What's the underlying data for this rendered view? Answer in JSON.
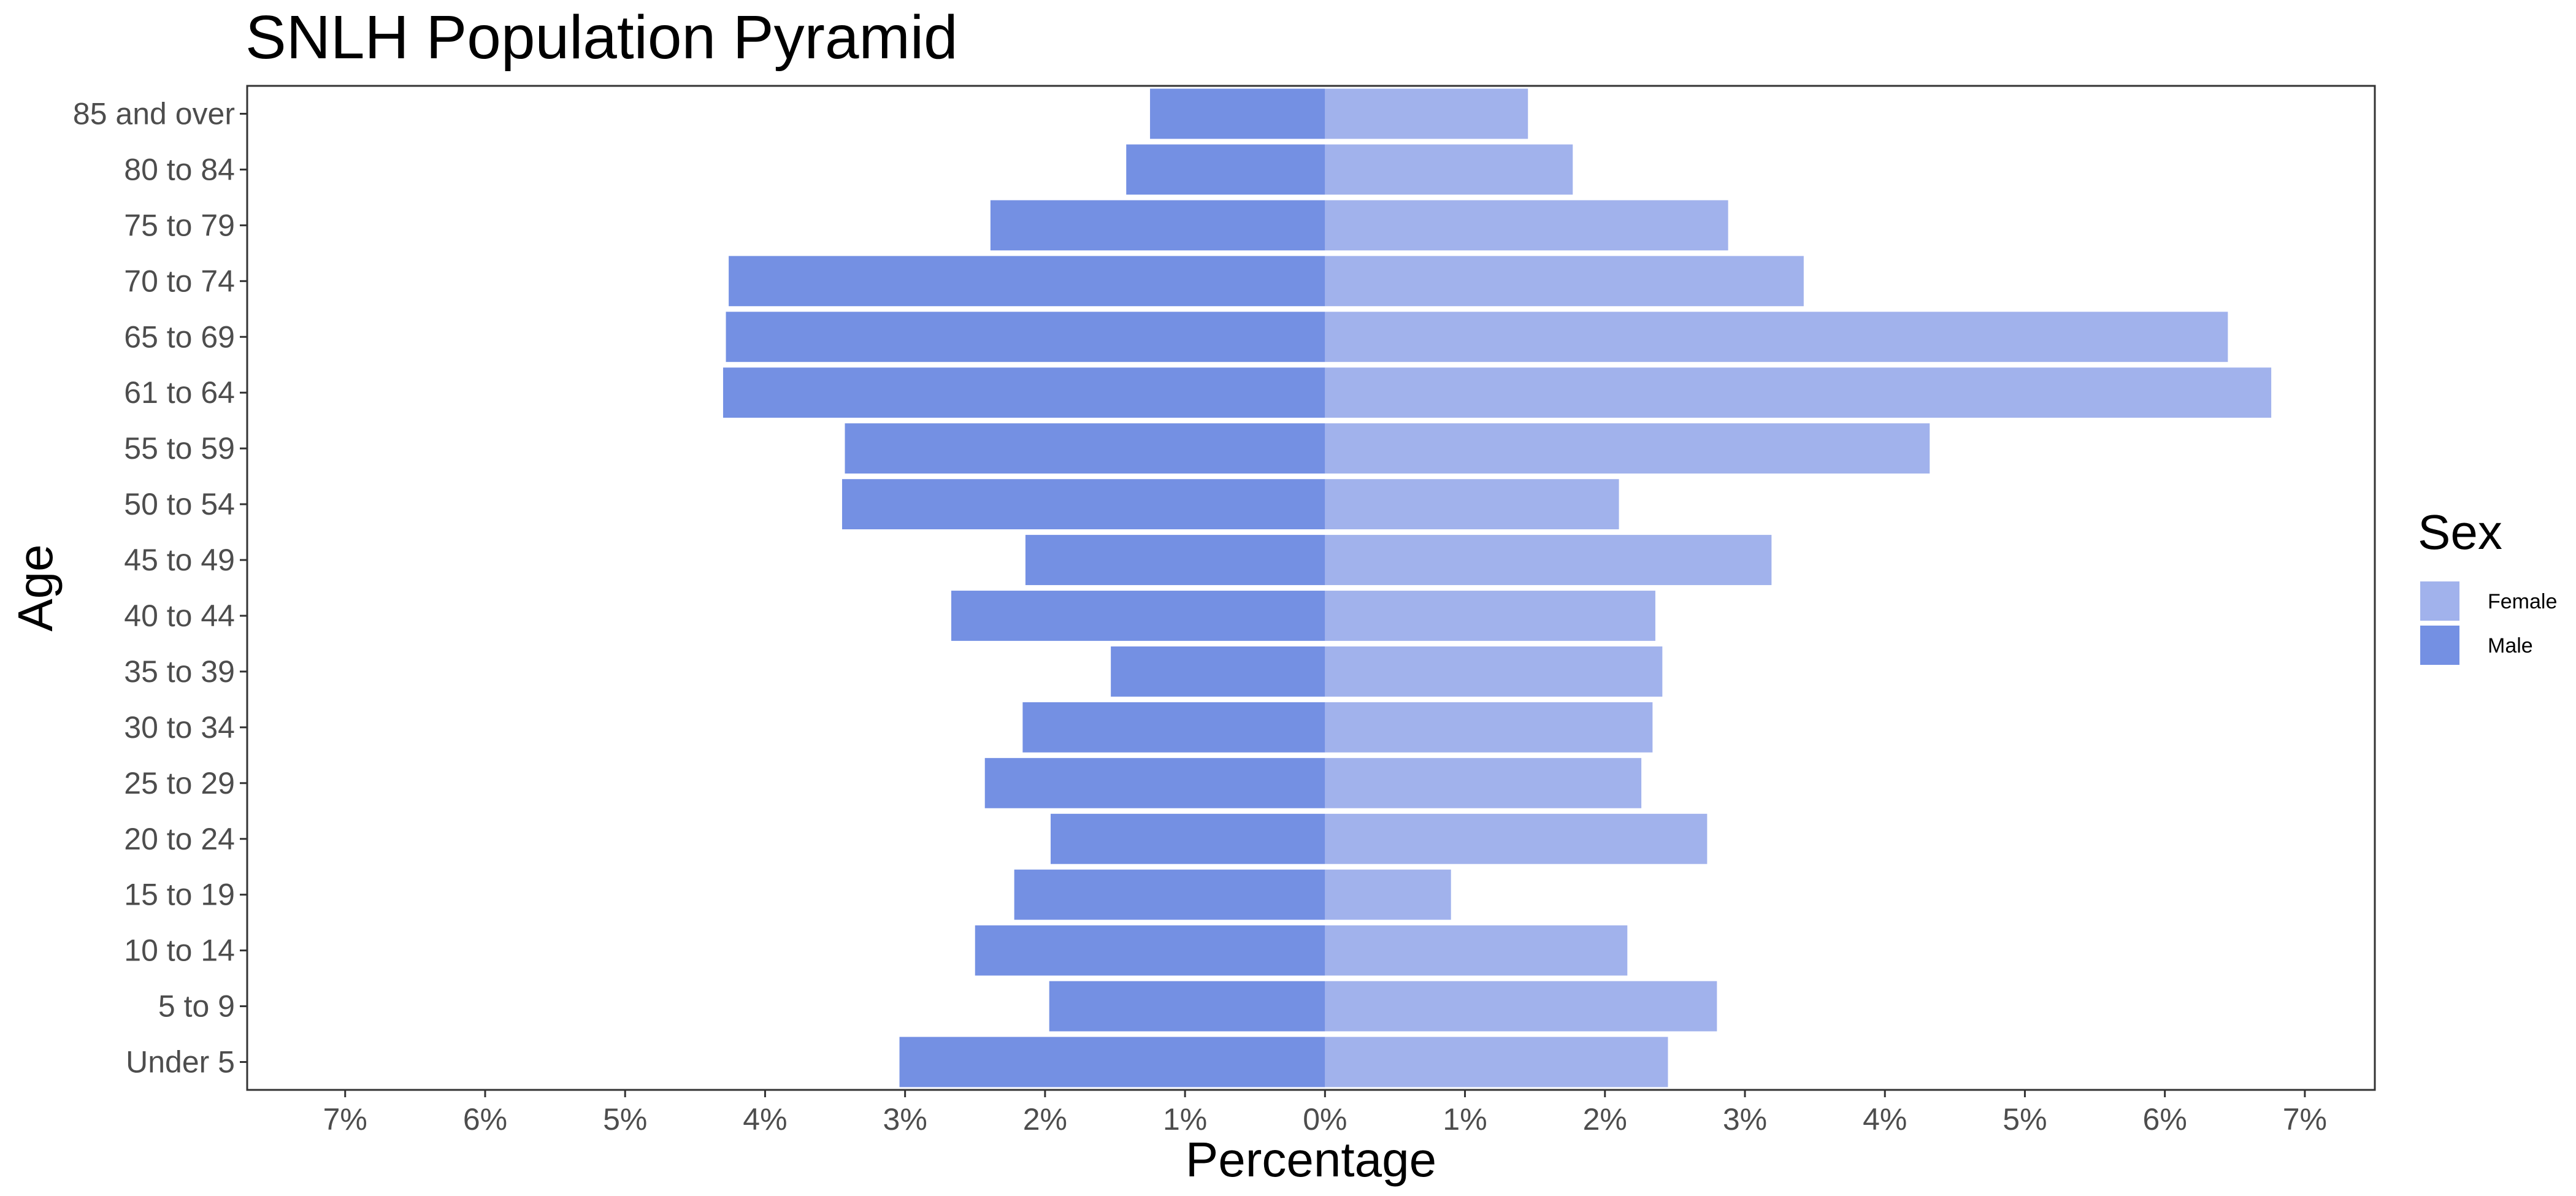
{
  "chart_data": {
    "type": "bar",
    "orientation": "horizontal",
    "title": "SNLH Population Pyramid",
    "xlabel": "Percentage",
    "ylabel": "Age",
    "xlim": [
      -7.7,
      7.5
    ],
    "x_ticks": [
      -7,
      -6,
      -5,
      -4,
      -3,
      -2,
      -1,
      0,
      1,
      2,
      3,
      4,
      5,
      6,
      7
    ],
    "x_tick_labels": [
      "7%",
      "6%",
      "5%",
      "4%",
      "3%",
      "2%",
      "1%",
      "0%",
      "1%",
      "2%",
      "3%",
      "4%",
      "5%",
      "6%",
      "7%"
    ],
    "categories": [
      "Under 5",
      "5 to 9",
      "10 to 14",
      "15 to 19",
      "20 to 24",
      "25 to 29",
      "30 to 34",
      "35 to 39",
      "40 to 44",
      "45 to 49",
      "50 to 54",
      "55 to 59",
      "61 to 64",
      "65 to 69",
      "70 to 74",
      "75 to 79",
      "80 to 84",
      "85 and over"
    ],
    "series": [
      {
        "name": "Female",
        "color": "#a1b2ec",
        "values": [
          2.45,
          2.8,
          2.16,
          0.9,
          2.73,
          2.26,
          2.34,
          2.41,
          2.36,
          3.19,
          2.1,
          4.32,
          6.76,
          6.45,
          3.42,
          2.88,
          1.77,
          1.45
        ]
      },
      {
        "name": "Male",
        "color": "#7490e3",
        "values": [
          -3.04,
          -1.97,
          -2.5,
          -2.22,
          -1.96,
          -2.43,
          -2.16,
          -1.53,
          -2.67,
          -2.14,
          -3.45,
          -3.43,
          -4.3,
          -4.28,
          -4.26,
          -2.39,
          -1.42,
          -1.25
        ]
      }
    ],
    "legend": {
      "title": "Sex",
      "position": "right",
      "entries": [
        "Female",
        "Male"
      ]
    },
    "grid": false
  }
}
